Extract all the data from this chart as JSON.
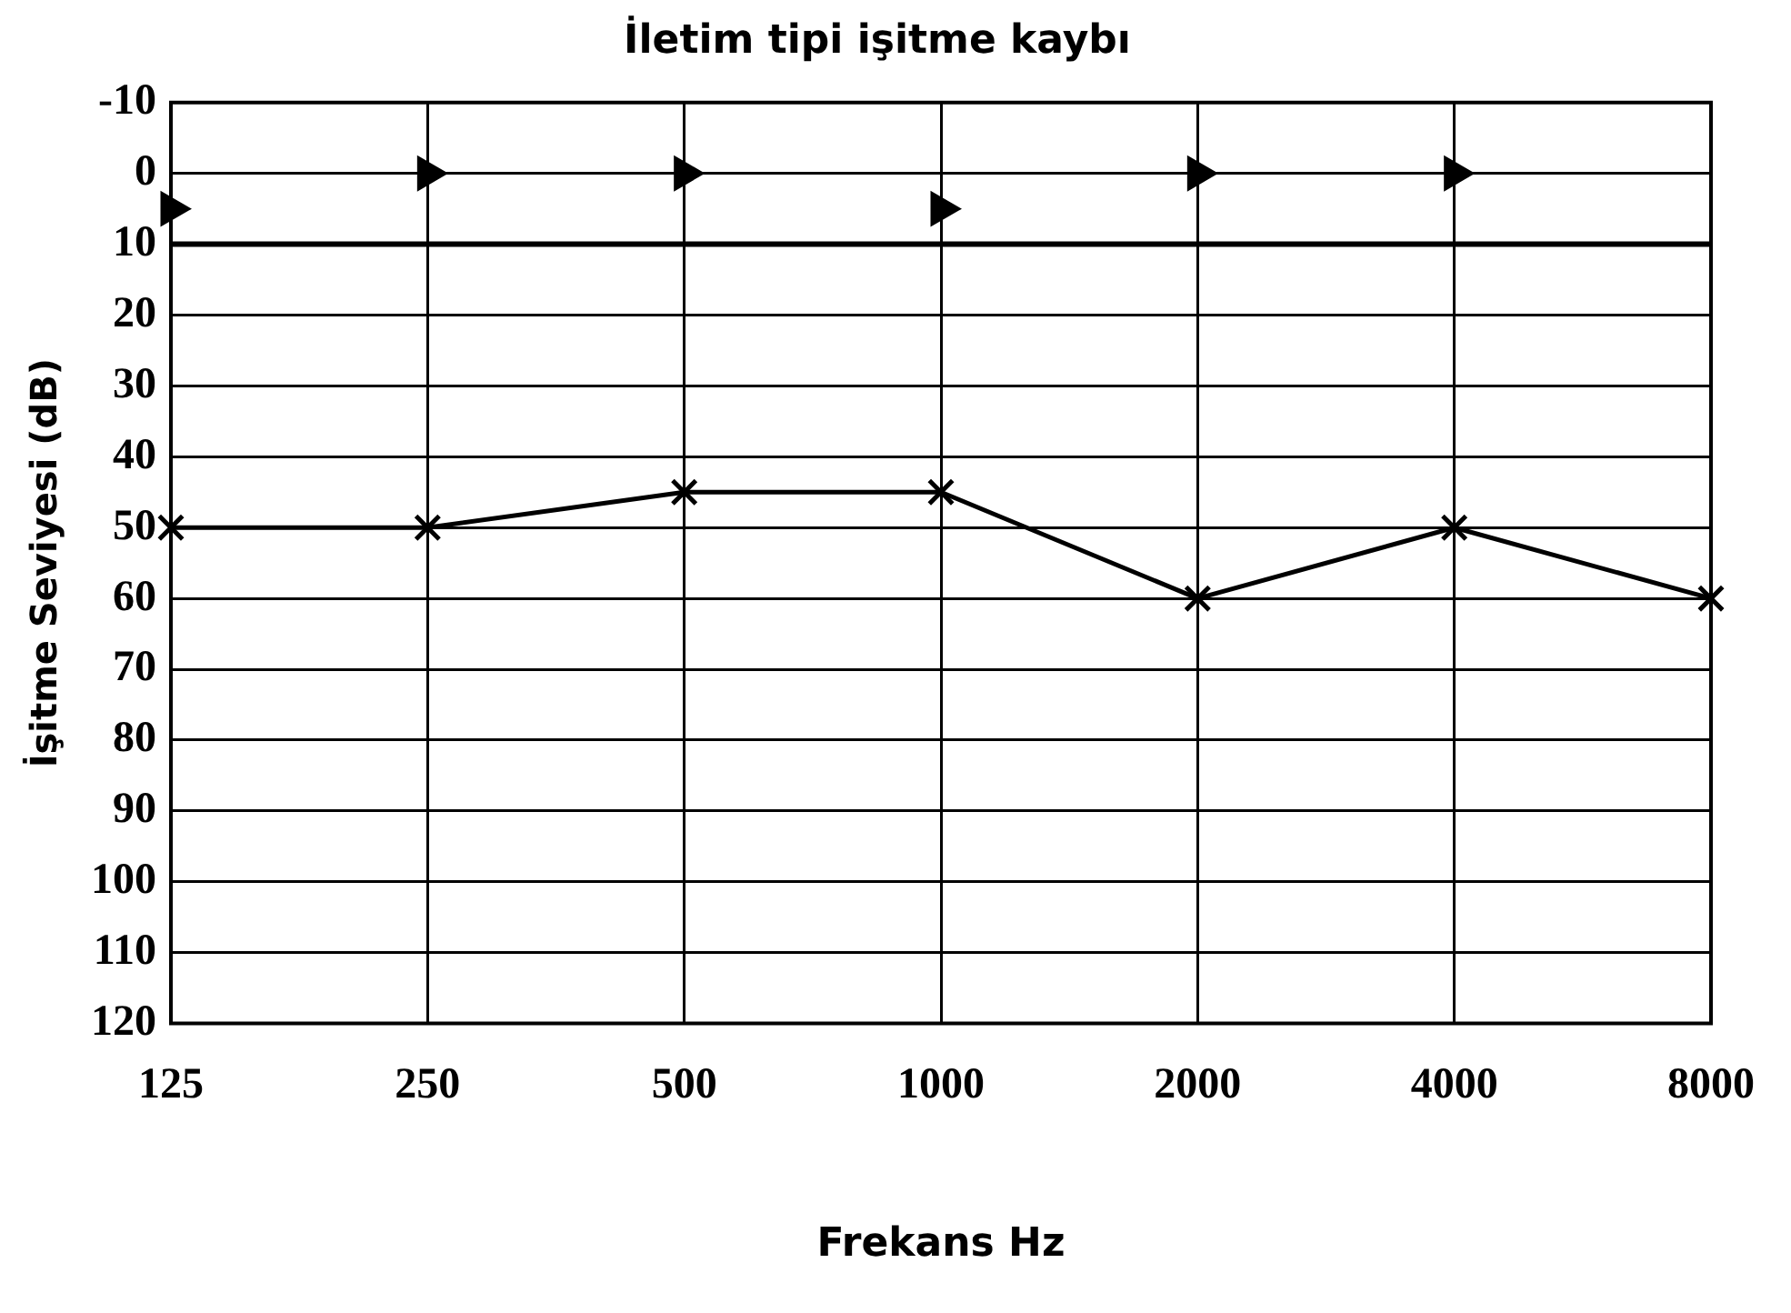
{
  "chart_data": {
    "type": "line",
    "title": "İletim tipi işitme kaybı",
    "xlabel": "Frekans Hz",
    "ylabel": "İşitme Seviyesi (dB)",
    "categories": [
      "125",
      "250",
      "500",
      "1000",
      "2000",
      "4000",
      "8000"
    ],
    "series": [
      {
        "type": "line",
        "color": "#000000",
        "marker": "cross",
        "values": [
          50,
          50,
          45,
          45,
          60,
          50,
          60
        ]
      },
      {
        "type": "scatter",
        "color": "#000000",
        "marker": "triangle",
        "values": [
          5,
          0,
          0,
          5,
          0,
          0,
          null
        ]
      }
    ],
    "ylim": [
      120,
      -10
    ],
    "yticks": [
      -10,
      0,
      10,
      20,
      30,
      40,
      50,
      60,
      70,
      80,
      90,
      100,
      110,
      120
    ],
    "ref_lines": [
      {
        "axis": "y",
        "value": 10,
        "color": "#000000"
      }
    ],
    "grid": true,
    "legend": false
  }
}
